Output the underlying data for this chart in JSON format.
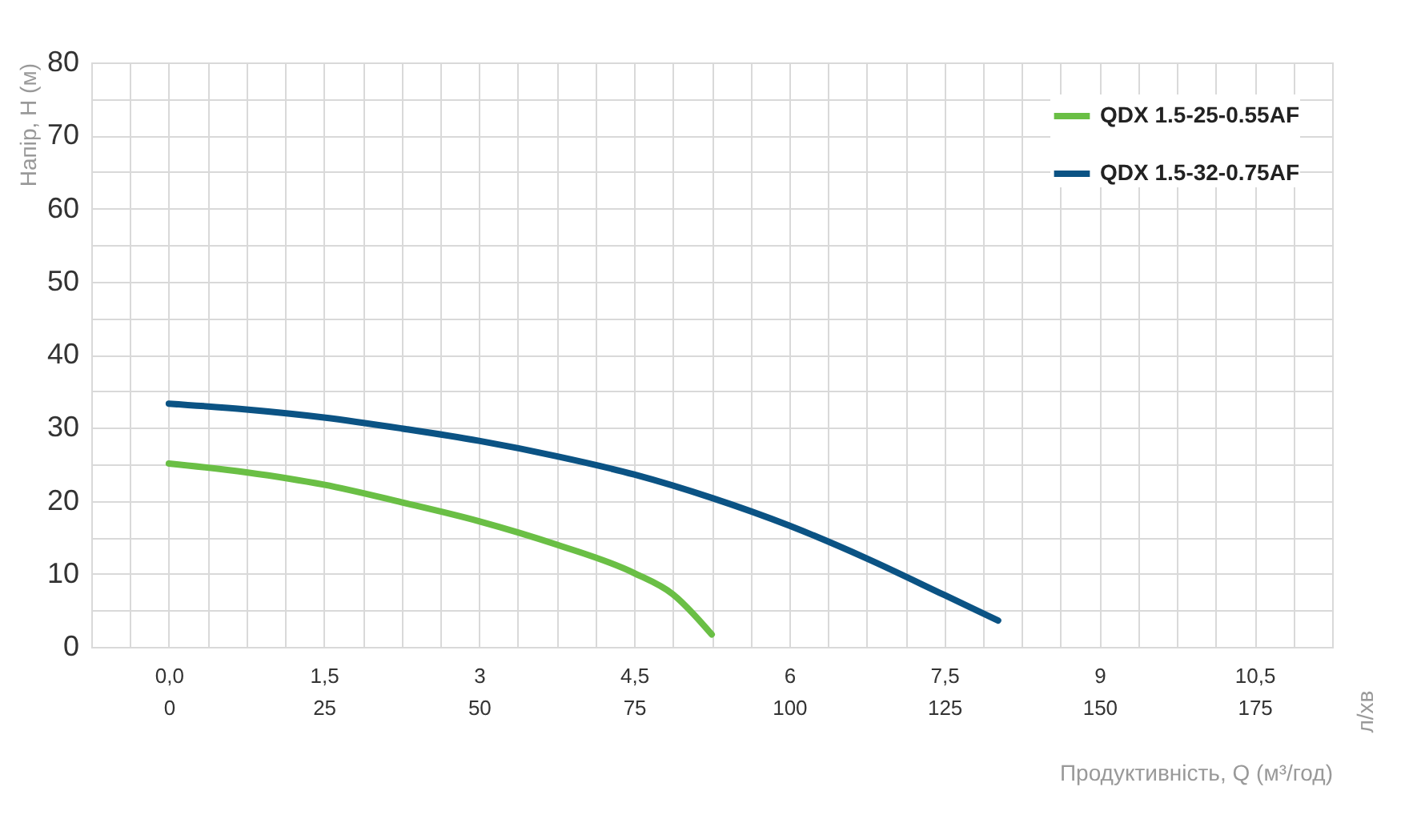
{
  "chart_data": {
    "type": "line",
    "xlabel": "Продуктивність, Q (м³/год)",
    "ylabel": "Напір, H (м)",
    "x2label": "л/хв",
    "series": [
      {
        "name": "QDX 1.5-25-0.55AF",
        "color": "#6abf45",
        "x": [
          0,
          0.75,
          1.5,
          2.25,
          3,
          3.75,
          4.5,
          4.875,
          5.25
        ],
        "values": [
          25.1,
          23.9,
          22.2,
          19.8,
          17.2,
          14.0,
          10.1,
          7.2,
          1.7
        ]
      },
      {
        "name": "QDX 1.5-32-0.75AF",
        "color": "#0b5384",
        "x": [
          0,
          0.75,
          1.5,
          2.25,
          3,
          3.75,
          4.5,
          5.25,
          6,
          6.75,
          7.5,
          8.02
        ],
        "values": [
          33.3,
          32.5,
          31.4,
          29.9,
          28.2,
          26.1,
          23.6,
          20.4,
          16.6,
          12.1,
          7.1,
          3.6
        ]
      }
    ],
    "xlim": [
      -0.75,
      11.25
    ],
    "xticks": [
      {
        "value": -0.375,
        "label": null
      },
      {
        "value": 0,
        "label": "0,0"
      },
      {
        "value": 0.375,
        "label": null
      },
      {
        "value": 0.75,
        "label": null
      },
      {
        "value": 1.125,
        "label": null
      },
      {
        "value": 1.5,
        "label": "1,5"
      },
      {
        "value": 1.875,
        "label": null
      },
      {
        "value": 2.25,
        "label": null
      },
      {
        "value": 2.625,
        "label": null
      },
      3,
      {
        "value": 3.375,
        "label": null
      },
      {
        "value": 3.75,
        "label": null
      },
      {
        "value": 4.125,
        "label": null
      },
      {
        "value": 4.5,
        "label": "4,5"
      },
      {
        "value": 4.875,
        "label": null
      },
      {
        "value": 5.25,
        "label": null
      },
      {
        "value": 5.625,
        "label": null
      },
      6,
      {
        "value": 6.375,
        "label": null
      },
      {
        "value": 6.75,
        "label": null
      },
      {
        "value": 7.125,
        "label": null
      },
      {
        "value": 7.5,
        "label": "7,5"
      },
      {
        "value": 7.875,
        "label": null
      },
      {
        "value": 8.25,
        "label": null
      },
      {
        "value": 8.625,
        "label": null
      },
      9,
      {
        "value": 9.375,
        "label": null
      },
      {
        "value": 9.75,
        "label": null
      },
      {
        "value": 10.125,
        "label": null
      },
      {
        "value": 10.5,
        "label": "10,5"
      },
      {
        "value": 10.875,
        "label": null
      }
    ],
    "x2lim": [
      -12.5,
      187.5
    ],
    "x2ticks": [
      0,
      25,
      50,
      75,
      100,
      125,
      150,
      175
    ],
    "ylim": [
      0,
      80
    ],
    "yticks": [
      0,
      {
        "value": 5,
        "label": null
      },
      10,
      {
        "value": 15,
        "label": null
      },
      20,
      {
        "value": 25,
        "label": null
      },
      30,
      {
        "value": 35,
        "label": null
      },
      40,
      {
        "value": 45,
        "label": null
      },
      50,
      {
        "value": 55,
        "label": null
      },
      60,
      {
        "value": 65,
        "label": null
      },
      70,
      {
        "value": 75,
        "label": null
      },
      80
    ],
    "grid": true,
    "legend": "top right",
    "marker": "none",
    "line_style": "solid"
  }
}
